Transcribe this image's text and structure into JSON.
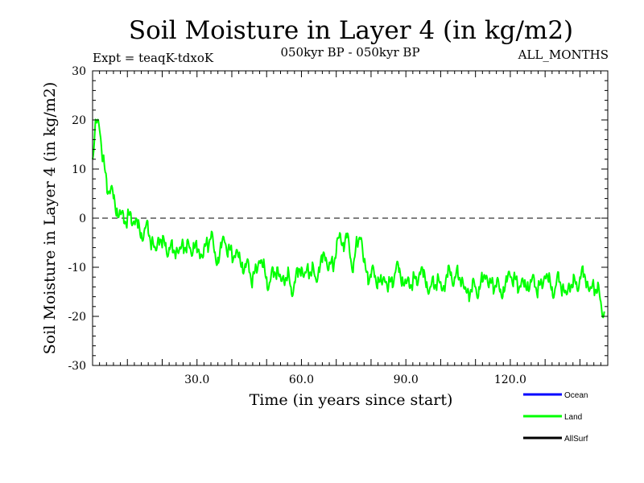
{
  "chart_data": {
    "type": "line",
    "title": "Soil Moisture in Layer 4 (in kg/m2)",
    "subtitle_left": "Expt = teaqK-tdxoK",
    "subtitle_center": "050kyr BP - 050kyr BP",
    "subtitle_right": "ALL_MONTHS",
    "xlabel": "Time (in years since start)",
    "ylabel": "Soil Moisture in Layer 4 (in kg/m2)",
    "xlim": [
      0,
      148
    ],
    "ylim": [
      -30,
      30
    ],
    "xticks": [
      30,
      60,
      90,
      120
    ],
    "xtick_labels": [
      "30.0",
      "60.0",
      "90.0",
      "120.0"
    ],
    "yticks": [
      -30,
      -20,
      -10,
      0,
      10,
      20,
      30
    ],
    "ytick_labels": [
      "-30",
      "-20",
      "-10",
      "0",
      "10",
      "20",
      "30"
    ],
    "zero_line": 0,
    "legend": [
      {
        "name": "Ocean",
        "color": "#0000ff"
      },
      {
        "name": "Land",
        "color": "#00ff00"
      },
      {
        "name": "AllSurf",
        "color": "#000000"
      }
    ],
    "series": [
      {
        "name": "Land",
        "color": "#00ff00",
        "x_start": 0,
        "x_step": 1,
        "values": [
          12,
          20,
          18,
          12,
          8,
          5,
          4,
          2,
          1,
          -1,
          0,
          1,
          -1,
          -2,
          -3,
          -2,
          -3,
          -5,
          -6,
          -4,
          -6,
          -5,
          -6,
          -7,
          -7,
          -6,
          -5,
          -7,
          -6,
          -5,
          -7,
          -8,
          -6,
          -5,
          -4,
          -7,
          -8,
          -6,
          -5,
          -6,
          -7,
          -8,
          -8,
          -9,
          -10,
          -11,
          -12,
          -10,
          -9,
          -10,
          -12,
          -13,
          -12,
          -10,
          -12,
          -13,
          -12,
          -14,
          -13,
          -12,
          -10,
          -11,
          -11,
          -11,
          -12,
          -10,
          -9,
          -8,
          -9,
          -10,
          -7,
          -3,
          -5,
          -4,
          -8,
          -9,
          -5,
          -4,
          -9,
          -11,
          -12,
          -12,
          -12,
          -13,
          -13,
          -14,
          -12,
          -11,
          -11,
          -12,
          -13,
          -14,
          -13,
          -12,
          -11,
          -12,
          -13,
          -14,
          -14,
          -13,
          -13,
          -14,
          -12,
          -11,
          -12,
          -12,
          -13,
          -14,
          -15,
          -15,
          -14,
          -14,
          -13,
          -12,
          -13,
          -13,
          -14,
          -15,
          -14,
          -13,
          -12,
          -12,
          -13,
          -14,
          -14,
          -13,
          -13,
          -14,
          -14,
          -13,
          -12,
          -13,
          -14,
          -14,
          -13,
          -14,
          -15,
          -14,
          -14,
          -13,
          -12,
          -12,
          -13,
          -14,
          -14,
          -15,
          -17,
          -19
        ]
      }
    ]
  }
}
